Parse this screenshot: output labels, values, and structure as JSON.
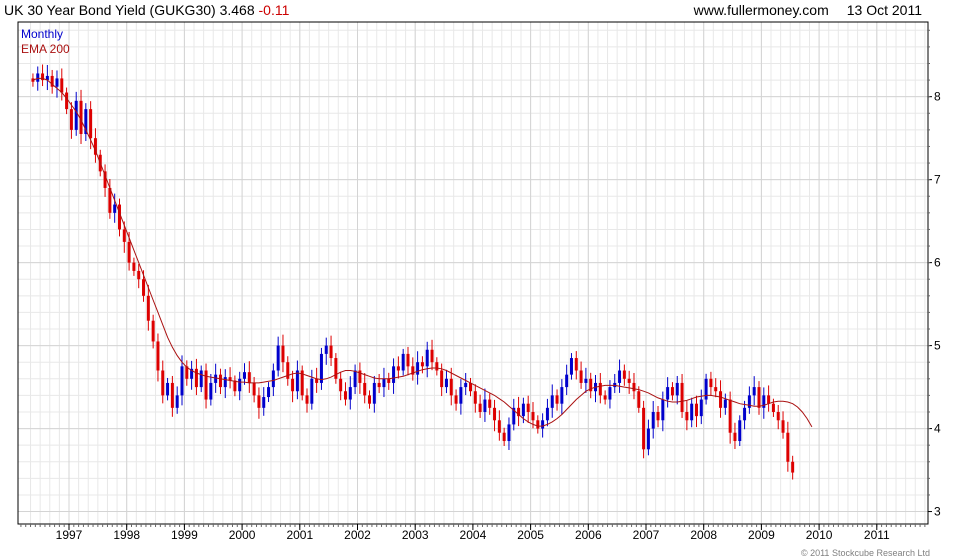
{
  "header": {
    "title": "UK 30 Year Bond Yield (GUKG30)",
    "last_value": "3.468",
    "change": "-0.11",
    "website": "www.fullermoney.com",
    "date": "13 Oct 2011"
  },
  "legend": {
    "period": "Monthly",
    "indicator": "EMA 200"
  },
  "footer": {
    "copyright": "© 2011 Stockcube Research Ltd"
  },
  "colors": {
    "up": "#0000cc",
    "down": "#dd0000",
    "ema": "#aa1111",
    "grid": "#d4d4d4",
    "axis": "#000000"
  },
  "chart_data": {
    "type": "candlestick",
    "period": "monthly",
    "x_tick_labels": [
      "1997",
      "1998",
      "1999",
      "2000",
      "2001",
      "2002",
      "2003",
      "2004",
      "2005",
      "2006",
      "2007",
      "2008",
      "2009",
      "2010",
      "2011"
    ],
    "y_tick_labels": [
      3,
      4,
      5,
      6,
      7,
      8
    ],
    "xlim": [
      "1996-05",
      "2011-10"
    ],
    "ylim": [
      2.85,
      8.9
    ],
    "grid": true,
    "y_axis_side": "right",
    "series": [
      {
        "name": "Monthly",
        "kind": "candles",
        "values": [
          {
            "open": 8.22,
            "close": 8.18
          },
          {
            "open": 8.18,
            "close": 8.28
          },
          {
            "open": 8.28,
            "close": 8.2
          },
          {
            "open": 8.2,
            "close": 8.25
          },
          {
            "open": 8.25,
            "close": 8.12
          },
          {
            "open": 8.12,
            "close": 8.22
          },
          {
            "open": 8.22,
            "close": 8.05
          },
          {
            "open": 8.05,
            "close": 7.85
          },
          {
            "open": 7.85,
            "close": 7.6
          },
          {
            "open": 7.6,
            "close": 7.95
          },
          {
            "open": 7.95,
            "close": 7.55
          },
          {
            "open": 7.55,
            "close": 7.85
          },
          {
            "open": 7.85,
            "close": 7.5
          },
          {
            "open": 7.5,
            "close": 7.3
          },
          {
            "open": 7.3,
            "close": 7.1
          },
          {
            "open": 7.1,
            "close": 6.9
          },
          {
            "open": 6.9,
            "close": 6.6
          },
          {
            "open": 6.6,
            "close": 6.7
          },
          {
            "open": 6.7,
            "close": 6.4
          },
          {
            "open": 6.4,
            "close": 6.25
          },
          {
            "open": 6.25,
            "close": 6.0
          },
          {
            "open": 6.0,
            "close": 5.9
          },
          {
            "open": 5.9,
            "close": 5.8
          },
          {
            "open": 5.8,
            "close": 5.6
          },
          {
            "open": 5.6,
            "close": 5.3
          },
          {
            "open": 5.3,
            "close": 5.05
          },
          {
            "open": 5.05,
            "close": 4.7
          },
          {
            "open": 4.7,
            "close": 4.4
          },
          {
            "open": 4.4,
            "close": 4.55
          },
          {
            "open": 4.55,
            "close": 4.25
          },
          {
            "open": 4.25,
            "close": 4.4
          },
          {
            "open": 4.4,
            "close": 4.75
          },
          {
            "open": 4.75,
            "close": 4.6
          },
          {
            "open": 4.6,
            "close": 4.72
          },
          {
            "open": 4.72,
            "close": 4.5
          },
          {
            "open": 4.5,
            "close": 4.7
          },
          {
            "open": 4.7,
            "close": 4.35
          },
          {
            "open": 4.35,
            "close": 4.55
          },
          {
            "open": 4.55,
            "close": 4.65
          },
          {
            "open": 4.65,
            "close": 4.5
          },
          {
            "open": 4.5,
            "close": 4.62
          },
          {
            "open": 4.62,
            "close": 4.58
          },
          {
            "open": 4.58,
            "close": 4.45
          },
          {
            "open": 4.45,
            "close": 4.6
          },
          {
            "open": 4.6,
            "close": 4.68
          },
          {
            "open": 4.68,
            "close": 4.55
          },
          {
            "open": 4.55,
            "close": 4.4
          },
          {
            "open": 4.4,
            "close": 4.25
          },
          {
            "open": 4.25,
            "close": 4.38
          },
          {
            "open": 4.38,
            "close": 4.5
          },
          {
            "open": 4.5,
            "close": 4.7
          },
          {
            "open": 4.7,
            "close": 5.0
          },
          {
            "open": 5.0,
            "close": 4.8
          },
          {
            "open": 4.8,
            "close": 4.6
          },
          {
            "open": 4.6,
            "close": 4.45
          },
          {
            "open": 4.45,
            "close": 4.7
          },
          {
            "open": 4.7,
            "close": 4.4
          },
          {
            "open": 4.4,
            "close": 4.3
          },
          {
            "open": 4.3,
            "close": 4.6
          },
          {
            "open": 4.6,
            "close": 4.55
          },
          {
            "open": 4.55,
            "close": 4.9
          },
          {
            "open": 4.9,
            "close": 5.0
          },
          {
            "open": 5.0,
            "close": 4.85
          },
          {
            "open": 4.85,
            "close": 4.6
          },
          {
            "open": 4.6,
            "close": 4.45
          },
          {
            "open": 4.45,
            "close": 4.35
          },
          {
            "open": 4.35,
            "close": 4.5
          },
          {
            "open": 4.5,
            "close": 4.7
          },
          {
            "open": 4.7,
            "close": 4.55
          },
          {
            "open": 4.55,
            "close": 4.4
          },
          {
            "open": 4.4,
            "close": 4.3
          },
          {
            "open": 4.3,
            "close": 4.55
          },
          {
            "open": 4.55,
            "close": 4.5
          },
          {
            "open": 4.5,
            "close": 4.6
          },
          {
            "open": 4.6,
            "close": 4.55
          },
          {
            "open": 4.55,
            "close": 4.75
          },
          {
            "open": 4.75,
            "close": 4.7
          },
          {
            "open": 4.7,
            "close": 4.9
          },
          {
            "open": 4.9,
            "close": 4.75
          },
          {
            "open": 4.75,
            "close": 4.65
          },
          {
            "open": 4.65,
            "close": 4.8
          },
          {
            "open": 4.8,
            "close": 4.75
          },
          {
            "open": 4.75,
            "close": 4.95
          },
          {
            "open": 4.95,
            "close": 4.8
          },
          {
            "open": 4.8,
            "close": 4.7
          },
          {
            "open": 4.7,
            "close": 4.5
          },
          {
            "open": 4.5,
            "close": 4.6
          },
          {
            "open": 4.6,
            "close": 4.4
          },
          {
            "open": 4.4,
            "close": 4.3
          },
          {
            "open": 4.3,
            "close": 4.5
          },
          {
            "open": 4.5,
            "close": 4.55
          },
          {
            "open": 4.55,
            "close": 4.45
          },
          {
            "open": 4.45,
            "close": 4.3
          },
          {
            "open": 4.3,
            "close": 4.2
          },
          {
            "open": 4.2,
            "close": 4.35
          },
          {
            "open": 4.35,
            "close": 4.25
          },
          {
            "open": 4.25,
            "close": 4.1
          },
          {
            "open": 4.1,
            "close": 3.95
          },
          {
            "open": 3.95,
            "close": 3.85
          },
          {
            "open": 3.85,
            "close": 4.05
          },
          {
            "open": 4.05,
            "close": 4.25
          },
          {
            "open": 4.25,
            "close": 4.15
          },
          {
            "open": 4.15,
            "close": 4.3
          },
          {
            "open": 4.3,
            "close": 4.2
          },
          {
            "open": 4.2,
            "close": 4.1
          },
          {
            "open": 4.1,
            "close": 4.0
          },
          {
            "open": 4.0,
            "close": 4.1
          },
          {
            "open": 4.1,
            "close": 4.25
          },
          {
            "open": 4.25,
            "close": 4.4
          },
          {
            "open": 4.4,
            "close": 4.3
          },
          {
            "open": 4.3,
            "close": 4.5
          },
          {
            "open": 4.5,
            "close": 4.65
          },
          {
            "open": 4.65,
            "close": 4.85
          },
          {
            "open": 4.85,
            "close": 4.7
          },
          {
            "open": 4.7,
            "close": 4.55
          },
          {
            "open": 4.55,
            "close": 4.6
          },
          {
            "open": 4.6,
            "close": 4.45
          },
          {
            "open": 4.45,
            "close": 4.55
          },
          {
            "open": 4.55,
            "close": 4.4
          },
          {
            "open": 4.4,
            "close": 4.35
          },
          {
            "open": 4.35,
            "close": 4.5
          },
          {
            "open": 4.5,
            "close": 4.55
          },
          {
            "open": 4.55,
            "close": 4.7
          },
          {
            "open": 4.7,
            "close": 4.6
          },
          {
            "open": 4.6,
            "close": 4.55
          },
          {
            "open": 4.55,
            "close": 4.45
          },
          {
            "open": 4.45,
            "close": 4.25
          },
          {
            "open": 4.25,
            "close": 3.75
          },
          {
            "open": 3.75,
            "close": 4.0
          },
          {
            "open": 4.0,
            "close": 4.2
          },
          {
            "open": 4.2,
            "close": 4.1
          },
          {
            "open": 4.1,
            "close": 4.35
          },
          {
            "open": 4.35,
            "close": 4.5
          },
          {
            "open": 4.5,
            "close": 4.4
          },
          {
            "open": 4.4,
            "close": 4.55
          },
          {
            "open": 4.55,
            "close": 4.2
          },
          {
            "open": 4.2,
            "close": 4.1
          },
          {
            "open": 4.1,
            "close": 4.3
          },
          {
            "open": 4.3,
            "close": 4.15
          },
          {
            "open": 4.15,
            "close": 4.35
          },
          {
            "open": 4.35,
            "close": 4.6
          },
          {
            "open": 4.6,
            "close": 4.5
          },
          {
            "open": 4.5,
            "close": 4.45
          },
          {
            "open": 4.45,
            "close": 4.25
          },
          {
            "open": 4.25,
            "close": 4.35
          },
          {
            "open": 4.35,
            "close": 3.95
          },
          {
            "open": 3.95,
            "close": 3.85
          },
          {
            "open": 3.85,
            "close": 4.1
          },
          {
            "open": 4.1,
            "close": 4.25
          },
          {
            "open": 4.25,
            "close": 4.4
          },
          {
            "open": 4.4,
            "close": 4.5
          },
          {
            "open": 4.5,
            "close": 4.25
          },
          {
            "open": 4.25,
            "close": 4.4
          },
          {
            "open": 4.4,
            "close": 4.3
          },
          {
            "open": 4.3,
            "close": 4.2
          },
          {
            "open": 4.2,
            "close": 4.1
          },
          {
            "open": 4.1,
            "close": 3.95
          },
          {
            "open": 3.95,
            "close": 3.6
          },
          {
            "open": 3.6,
            "close": 3.47
          }
        ]
      },
      {
        "name": "EMA 200",
        "kind": "line",
        "values": [
          8.2,
          8.22,
          8.22,
          8.2,
          8.15,
          8.1,
          8.05,
          7.98,
          7.9,
          7.82,
          7.72,
          7.6,
          7.48,
          7.35,
          7.2,
          7.05,
          6.9,
          6.75,
          6.6,
          6.45,
          6.3,
          6.15,
          6.0,
          5.85,
          5.7,
          5.55,
          5.4,
          5.25,
          5.1,
          4.98,
          4.88,
          4.8,
          4.74,
          4.7,
          4.67,
          4.65,
          4.63,
          4.62,
          4.61,
          4.6,
          4.59,
          4.58,
          4.57,
          4.56,
          4.56,
          4.55,
          4.55,
          4.55,
          4.56,
          4.57,
          4.58,
          4.6,
          4.62,
          4.64,
          4.66,
          4.67,
          4.66,
          4.64,
          4.62,
          4.6,
          4.59,
          4.6,
          4.62,
          4.65,
          4.68,
          4.7,
          4.7,
          4.69,
          4.67,
          4.65,
          4.63,
          4.61,
          4.6,
          4.6,
          4.6,
          4.61,
          4.62,
          4.63,
          4.65,
          4.67,
          4.69,
          4.71,
          4.72,
          4.73,
          4.73,
          4.72,
          4.7,
          4.67,
          4.64,
          4.61,
          4.58,
          4.55,
          4.52,
          4.49,
          4.46,
          4.43,
          4.4,
          4.36,
          4.32,
          4.27,
          4.22,
          4.17,
          4.12,
          4.08,
          4.05,
          4.03,
          4.03,
          4.05,
          4.08,
          4.12,
          4.17,
          4.23,
          4.29,
          4.35,
          4.4,
          4.45,
          4.48,
          4.5,
          4.51,
          4.52,
          4.52,
          4.52,
          4.51,
          4.5,
          4.49,
          4.48,
          4.47,
          4.45,
          4.43,
          4.4,
          4.37,
          4.35,
          4.33,
          4.32,
          4.32,
          4.33,
          4.34,
          4.36,
          4.38,
          4.39,
          4.4,
          4.4,
          4.39,
          4.38,
          4.36,
          4.34,
          4.32,
          4.3,
          4.29,
          4.28,
          4.27,
          4.27,
          4.28,
          4.3,
          4.32,
          4.33,
          4.33,
          4.32,
          4.3,
          4.26,
          4.2,
          4.12,
          4.02
        ]
      }
    ]
  }
}
